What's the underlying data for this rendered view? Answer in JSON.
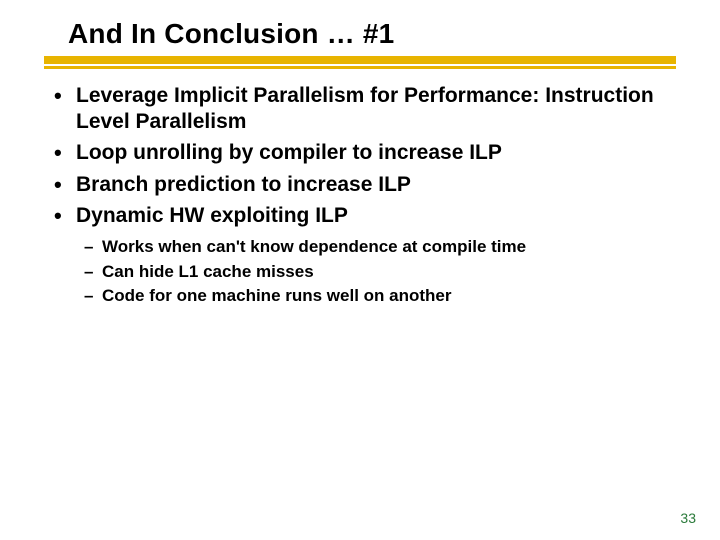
{
  "title": "And In Conclusion … #1",
  "rule_color": "#e8b400",
  "bullets": [
    {
      "text": "Leverage Implicit Parallelism for Performance: Instruction Level Parallelism"
    },
    {
      "text": "Loop unrolling by compiler to increase ILP"
    },
    {
      "text": "Branch prediction to increase ILP"
    },
    {
      "text": "Dynamic HW exploiting ILP"
    }
  ],
  "sub_bullets": [
    {
      "text": "Works when can't know dependence at compile time"
    },
    {
      "text": "Can hide L1 cache misses"
    },
    {
      "text": "Code for one machine runs well on another"
    }
  ],
  "page_number": "33",
  "page_number_color": "#2a7a3a"
}
